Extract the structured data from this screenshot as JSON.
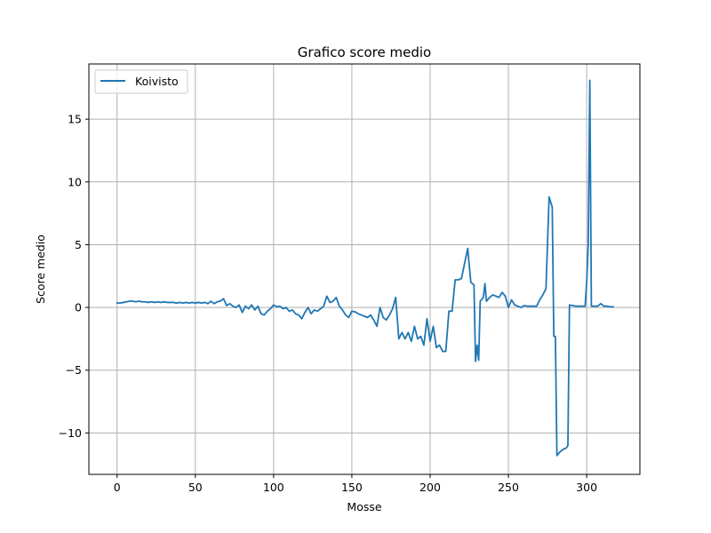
{
  "chart_data": {
    "type": "line",
    "title": "Grafico score medio",
    "xlabel": "Mosse",
    "ylabel": "Score medio",
    "xlim": [
      -18,
      334
    ],
    "ylim": [
      -13.3,
      19.4
    ],
    "xticks": [
      0,
      50,
      100,
      150,
      200,
      250,
      300
    ],
    "yticks": [
      -10,
      -5,
      0,
      5,
      10,
      15
    ],
    "xtick_labels": [
      "0",
      "50",
      "100",
      "150",
      "200",
      "250",
      "300"
    ],
    "ytick_labels": [
      "−10",
      "−5",
      "0",
      "5",
      "10",
      "15"
    ],
    "grid": true,
    "legend": "top-left",
    "series": [
      {
        "name": "Koivisto",
        "color": "#1f77b4",
        "points": [
          [
            0,
            0.35
          ],
          [
            2,
            0.35
          ],
          [
            4,
            0.4
          ],
          [
            6,
            0.45
          ],
          [
            8,
            0.5
          ],
          [
            10,
            0.5
          ],
          [
            12,
            0.45
          ],
          [
            14,
            0.5
          ],
          [
            16,
            0.45
          ],
          [
            18,
            0.45
          ],
          [
            20,
            0.4
          ],
          [
            22,
            0.45
          ],
          [
            24,
            0.4
          ],
          [
            26,
            0.45
          ],
          [
            28,
            0.4
          ],
          [
            30,
            0.45
          ],
          [
            32,
            0.4
          ],
          [
            34,
            0.4
          ],
          [
            36,
            0.4
          ],
          [
            38,
            0.35
          ],
          [
            40,
            0.4
          ],
          [
            42,
            0.35
          ],
          [
            44,
            0.4
          ],
          [
            46,
            0.35
          ],
          [
            48,
            0.4
          ],
          [
            50,
            0.35
          ],
          [
            52,
            0.4
          ],
          [
            54,
            0.35
          ],
          [
            56,
            0.4
          ],
          [
            58,
            0.3
          ],
          [
            60,
            0.5
          ],
          [
            62,
            0.3
          ],
          [
            64,
            0.45
          ],
          [
            66,
            0.5
          ],
          [
            68,
            0.7
          ],
          [
            70,
            0.15
          ],
          [
            72,
            0.3
          ],
          [
            74,
            0.1
          ],
          [
            76,
            0.0
          ],
          [
            78,
            0.2
          ],
          [
            80,
            -0.4
          ],
          [
            82,
            0.1
          ],
          [
            84,
            -0.1
          ],
          [
            86,
            0.2
          ],
          [
            88,
            -0.2
          ],
          [
            90,
            0.1
          ],
          [
            92,
            -0.5
          ],
          [
            94,
            -0.6
          ],
          [
            96,
            -0.3
          ],
          [
            98,
            -0.1
          ],
          [
            100,
            0.2
          ],
          [
            102,
            0.05
          ],
          [
            104,
            0.1
          ],
          [
            106,
            -0.1
          ],
          [
            108,
            0.0
          ],
          [
            110,
            -0.3
          ],
          [
            112,
            -0.2
          ],
          [
            114,
            -0.5
          ],
          [
            116,
            -0.6
          ],
          [
            118,
            -0.9
          ],
          [
            120,
            -0.4
          ],
          [
            122,
            0.0
          ],
          [
            124,
            -0.5
          ],
          [
            126,
            -0.2
          ],
          [
            128,
            -0.3
          ],
          [
            130,
            -0.1
          ],
          [
            132,
            0.1
          ],
          [
            134,
            0.9
          ],
          [
            136,
            0.4
          ],
          [
            138,
            0.5
          ],
          [
            140,
            0.8
          ],
          [
            142,
            0.1
          ],
          [
            144,
            -0.2
          ],
          [
            146,
            -0.6
          ],
          [
            148,
            -0.8
          ],
          [
            150,
            -0.3
          ],
          [
            152,
            -0.35
          ],
          [
            154,
            -0.5
          ],
          [
            156,
            -0.6
          ],
          [
            158,
            -0.7
          ],
          [
            160,
            -0.8
          ],
          [
            162,
            -0.6
          ],
          [
            164,
            -1.0
          ],
          [
            166,
            -1.5
          ],
          [
            168,
            0.0
          ],
          [
            170,
            -0.8
          ],
          [
            172,
            -1.0
          ],
          [
            174,
            -0.6
          ],
          [
            176,
            -0.1
          ],
          [
            178,
            0.8
          ],
          [
            180,
            -2.5
          ],
          [
            182,
            -2.0
          ],
          [
            184,
            -2.5
          ],
          [
            186,
            -2.0
          ],
          [
            188,
            -2.7
          ],
          [
            190,
            -1.5
          ],
          [
            192,
            -2.5
          ],
          [
            194,
            -2.3
          ],
          [
            196,
            -3.0
          ],
          [
            198,
            -0.9
          ],
          [
            200,
            -2.7
          ],
          [
            202,
            -1.5
          ],
          [
            204,
            -3.2
          ],
          [
            206,
            -3.0
          ],
          [
            208,
            -3.5
          ],
          [
            210,
            -3.5
          ],
          [
            212,
            -0.3
          ],
          [
            214,
            -0.3
          ],
          [
            216,
            2.2
          ],
          [
            218,
            2.2
          ],
          [
            220,
            2.3
          ],
          [
            222,
            3.5
          ],
          [
            224,
            4.7
          ],
          [
            226,
            2.0
          ],
          [
            228,
            1.8
          ],
          [
            229,
            -4.3
          ],
          [
            230,
            -3.0
          ],
          [
            231,
            -4.2
          ],
          [
            232,
            0.5
          ],
          [
            234,
            0.8
          ],
          [
            235,
            1.9
          ],
          [
            236,
            0.5
          ],
          [
            238,
            0.8
          ],
          [
            240,
            1.0
          ],
          [
            242,
            0.9
          ],
          [
            244,
            0.8
          ],
          [
            246,
            1.2
          ],
          [
            248,
            0.9
          ],
          [
            250,
            0.0
          ],
          [
            252,
            0.6
          ],
          [
            254,
            0.2
          ],
          [
            256,
            0.1
          ],
          [
            258,
            0.0
          ],
          [
            260,
            0.15
          ],
          [
            262,
            0.1
          ],
          [
            264,
            0.1
          ],
          [
            266,
            0.1
          ],
          [
            268,
            0.1
          ],
          [
            270,
            0.6
          ],
          [
            272,
            1.0
          ],
          [
            274,
            1.5
          ],
          [
            276,
            8.8
          ],
          [
            278,
            8.0
          ],
          [
            279,
            -2.3
          ],
          [
            280,
            -2.3
          ],
          [
            281,
            -11.8
          ],
          [
            283,
            -11.5
          ],
          [
            285,
            -11.3
          ],
          [
            287,
            -11.2
          ],
          [
            288,
            -11.0
          ],
          [
            289,
            0.2
          ],
          [
            291,
            0.15
          ],
          [
            293,
            0.1
          ],
          [
            295,
            0.1
          ],
          [
            297,
            0.1
          ],
          [
            299,
            0.1
          ],
          [
            300,
            2.0
          ],
          [
            301,
            5.0
          ],
          [
            302,
            18.1
          ],
          [
            303,
            0.1
          ],
          [
            305,
            0.1
          ],
          [
            307,
            0.1
          ],
          [
            309,
            0.3
          ],
          [
            311,
            0.1
          ],
          [
            313,
            0.1
          ],
          [
            315,
            0.05
          ],
          [
            317,
            0.05
          ]
        ]
      }
    ]
  }
}
